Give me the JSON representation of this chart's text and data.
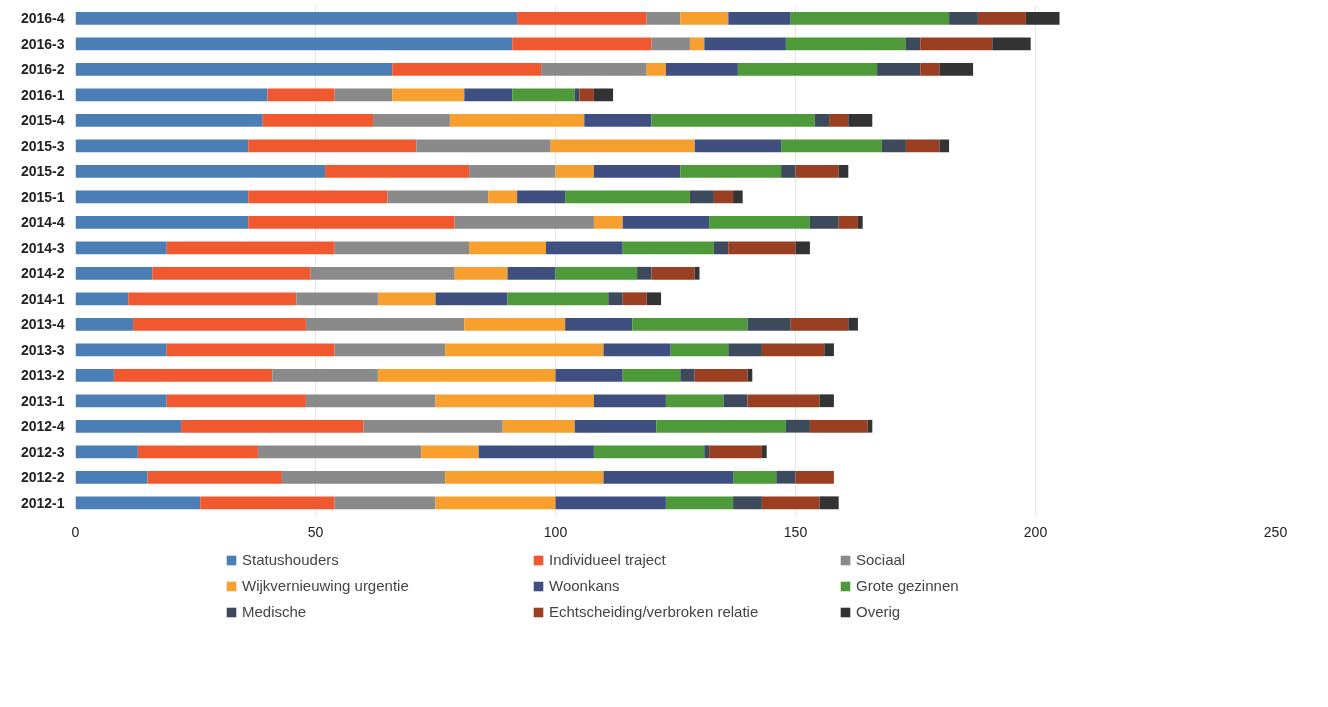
{
  "chart_data": {
    "type": "bar",
    "orientation": "horizontal",
    "stacked": true,
    "categories": [
      "2016-4",
      "2016-3",
      "2016-2",
      "2016-1",
      "2015-4",
      "2015-3",
      "2015-2",
      "2015-1",
      "2014-4",
      "2014-3",
      "2014-2",
      "2014-1",
      "2013-4",
      "2013-3",
      "2013-2",
      "2013-1",
      "2012-4",
      "2012-3",
      "2012-2",
      "2012-1"
    ],
    "series": [
      {
        "name": "Statushouders",
        "color": "#4a7eb5",
        "values": [
          92,
          91,
          66,
          40,
          39,
          36,
          52,
          36,
          36,
          19,
          16,
          11,
          12,
          19,
          8,
          19,
          22,
          13,
          15,
          26
        ]
      },
      {
        "name": "Individueel traject",
        "color": "#f0582f",
        "values": [
          27,
          29,
          31,
          14,
          23,
          35,
          30,
          29,
          43,
          35,
          33,
          35,
          36,
          35,
          33,
          29,
          38,
          25,
          28,
          28
        ]
      },
      {
        "name": "Sociaal",
        "color": "#8a8a8a",
        "values": [
          7,
          8,
          22,
          12,
          16,
          28,
          18,
          21,
          29,
          28,
          30,
          17,
          33,
          23,
          22,
          27,
          29,
          34,
          34,
          21
        ]
      },
      {
        "name": "Wijkvernieuwing urgentie",
        "color": "#f7a030",
        "values": [
          10,
          3,
          4,
          15,
          28,
          30,
          8,
          6,
          6,
          16,
          11,
          12,
          21,
          33,
          37,
          33,
          15,
          12,
          33,
          25
        ]
      },
      {
        "name": "Woonkans",
        "color": "#3f4f80",
        "values": [
          13,
          17,
          15,
          10,
          14,
          18,
          18,
          10,
          18,
          16,
          10,
          15,
          14,
          14,
          14,
          15,
          17,
          24,
          27,
          23
        ]
      },
      {
        "name": "Grote gezinnen",
        "color": "#4e9a3a",
        "values": [
          33,
          25,
          29,
          13,
          34,
          21,
          21,
          26,
          21,
          19,
          17,
          21,
          24,
          12,
          12,
          12,
          27,
          23,
          9,
          14
        ]
      },
      {
        "name": "Medische",
        "color": "#3c4a5c",
        "values": [
          6,
          3,
          9,
          1,
          3,
          5,
          3,
          5,
          6,
          3,
          3,
          3,
          9,
          7,
          3,
          5,
          5,
          1,
          4,
          6
        ]
      },
      {
        "name": "Echtscheiding/verbroken relatie",
        "color": "#9b3f22",
        "values": [
          10,
          15,
          4,
          3,
          4,
          7,
          9,
          4,
          4,
          14,
          9,
          5,
          12,
          13,
          11,
          15,
          12,
          11,
          8,
          12
        ]
      },
      {
        "name": "Overig",
        "color": "#333333",
        "values": [
          7,
          8,
          7,
          4,
          5,
          2,
          2,
          2,
          1,
          3,
          1,
          3,
          2,
          2,
          1,
          3,
          1,
          1,
          0,
          4
        ]
      }
    ],
    "xlim": [
      0,
      250
    ],
    "xticks": [
      0,
      50,
      100,
      150,
      200,
      250
    ],
    "grid": "x",
    "legend": "bottom"
  }
}
